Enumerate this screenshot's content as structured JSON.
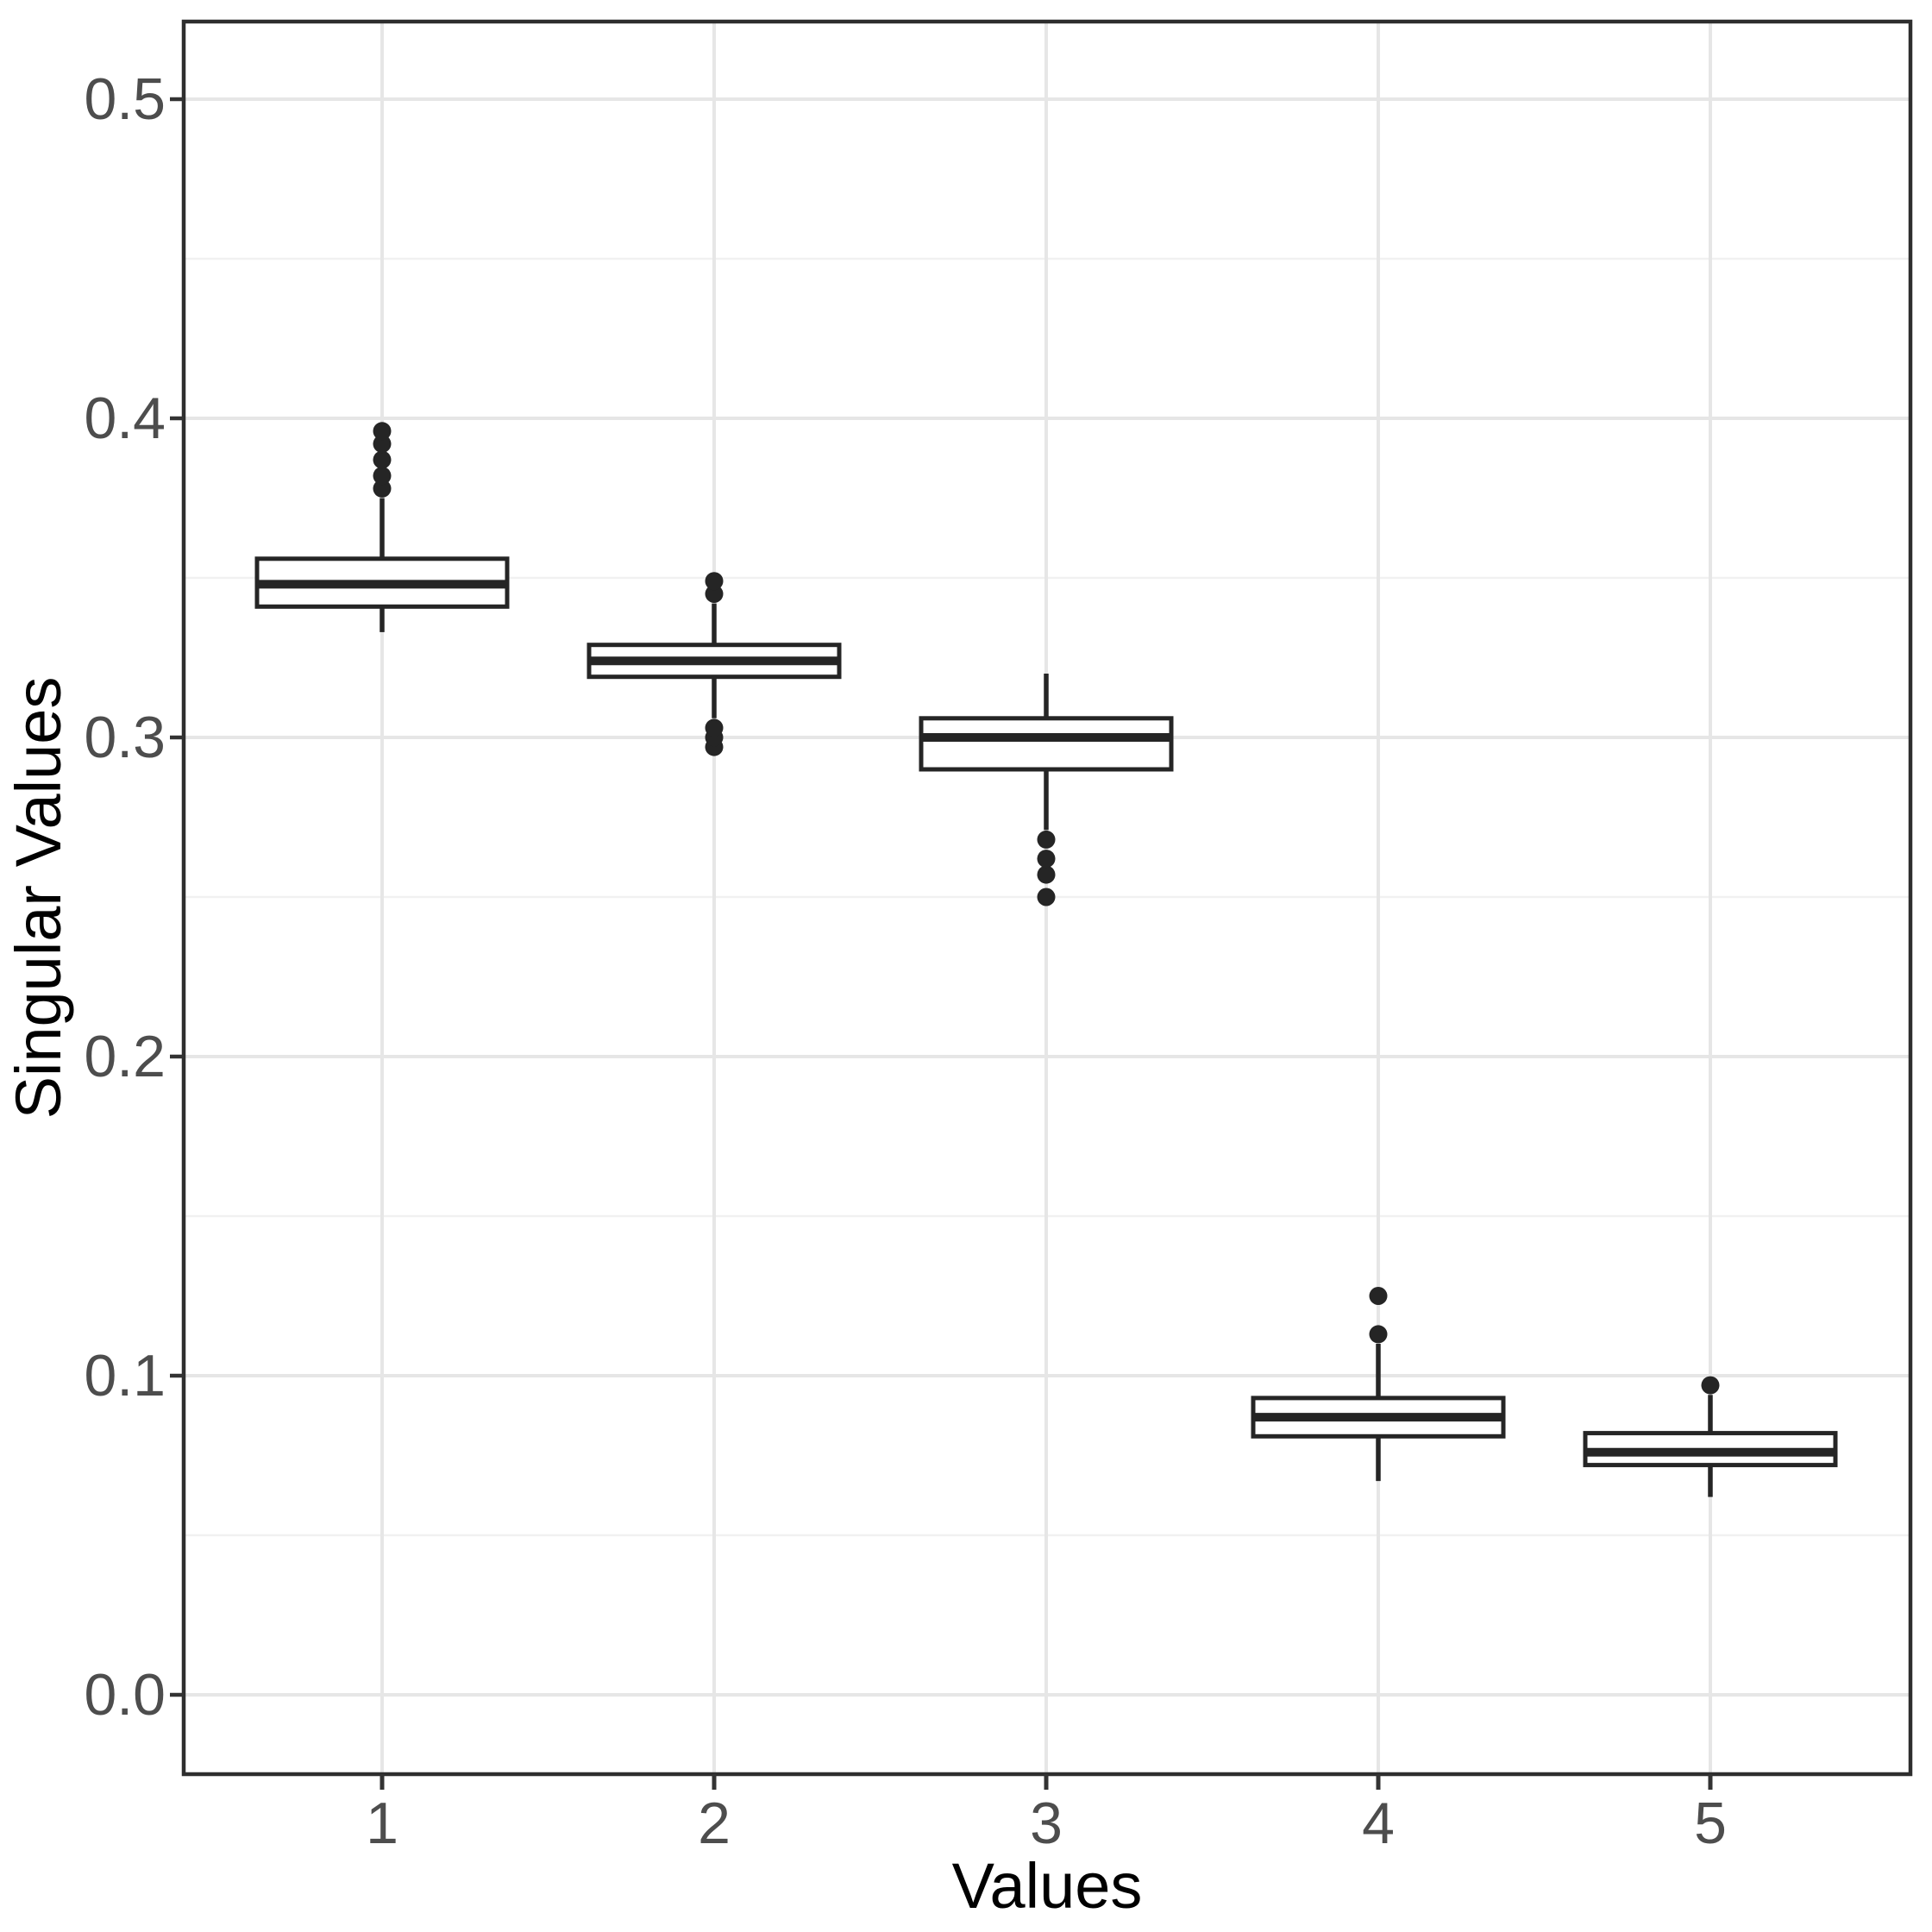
{
  "figure": {
    "background": "#ffffff"
  },
  "style": {
    "panel_border_color": "#2e2e2e",
    "grid_major_color": "#e6e6e6",
    "grid_minor_color": "#f1f1f1",
    "tick_mark_color": "#333333",
    "tick_label_color": "#4d4d4d",
    "axis_title_color": "#000000",
    "box_stroke_color": "#252525",
    "box_fill_color": "#ffffff",
    "outlier_color": "#252525"
  },
  "chart_data": {
    "type": "boxplot",
    "title": "",
    "xlabel": "Values",
    "ylabel": "Singular Values",
    "categories": [
      "1",
      "2",
      "3",
      "4",
      "5"
    ],
    "y_tick_labels": [
      "0.0",
      "0.1",
      "0.2",
      "0.3",
      "0.4",
      "0.5"
    ],
    "y_major_ticks": [
      0.0,
      0.1,
      0.2,
      0.3,
      0.4,
      0.5
    ],
    "y_minor_ticks": [
      0.05,
      0.15,
      0.25,
      0.35,
      0.45
    ],
    "ylim": [
      -0.025,
      0.524
    ],
    "grid": "major-and-minor",
    "legend_position": "none",
    "boxes": [
      {
        "category": "1",
        "whisker_low": 0.333,
        "q1": 0.341,
        "median": 0.348,
        "q3": 0.356,
        "whisker_high": 0.375,
        "outliers": [
          0.378,
          0.382,
          0.387,
          0.392,
          0.396
        ]
      },
      {
        "category": "2",
        "whisker_low": 0.306,
        "q1": 0.319,
        "median": 0.324,
        "q3": 0.329,
        "whisker_high": 0.342,
        "outliers": [
          0.297,
          0.3,
          0.303,
          0.345,
          0.349
        ]
      },
      {
        "category": "3",
        "whisker_low": 0.271,
        "q1": 0.29,
        "median": 0.3,
        "q3": 0.306,
        "whisker_high": 0.32,
        "outliers": [
          0.25,
          0.257,
          0.262,
          0.268
        ]
      },
      {
        "category": "4",
        "whisker_low": 0.067,
        "q1": 0.081,
        "median": 0.087,
        "q3": 0.093,
        "whisker_high": 0.11,
        "outliers": [
          0.113,
          0.125
        ]
      },
      {
        "category": "5",
        "whisker_low": 0.062,
        "q1": 0.072,
        "median": 0.076,
        "q3": 0.082,
        "whisker_high": 0.094,
        "outliers": [
          0.097
        ]
      }
    ]
  }
}
